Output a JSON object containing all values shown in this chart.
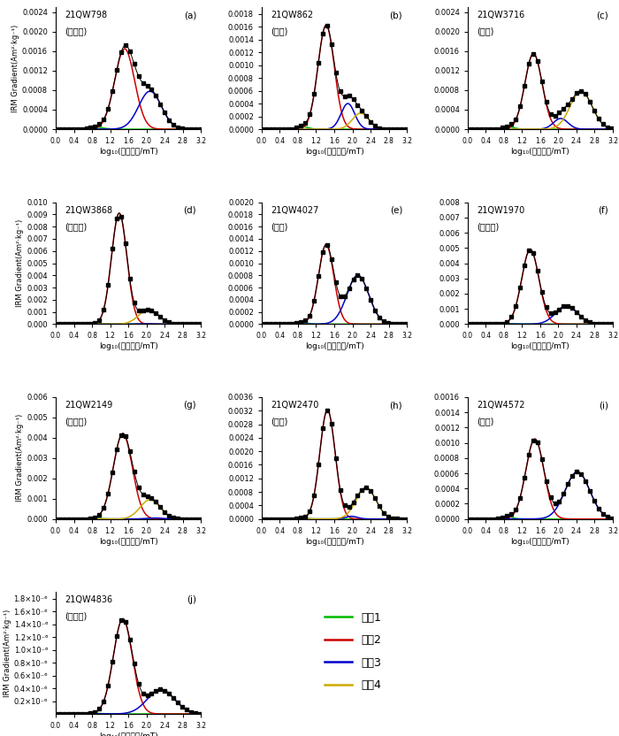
{
  "panels": [
    {
      "id": "a",
      "sample": "21QW798",
      "type": "古土壤",
      "ylim": [
        0,
        0.0025
      ],
      "yticks": [
        0.0,
        0.0004,
        0.0008,
        0.0012,
        0.0016,
        0.002,
        0.0024
      ],
      "comp2": {
        "mu": 1.52,
        "sigma": 0.22,
        "amp": 0.00165
      },
      "comp3": {
        "mu": 2.08,
        "sigma": 0.25,
        "amp": 0.00078
      },
      "comp1": {
        "mu": 0.9,
        "sigma": 0.15,
        "amp": 4e-05
      },
      "comp4": null
    },
    {
      "id": "b",
      "sample": "21QW862",
      "type": "黄土",
      "ylim": [
        0,
        0.0019
      ],
      "yticks": [
        0.0,
        0.0002,
        0.0004,
        0.0006,
        0.0008,
        0.001,
        0.0012,
        0.0014,
        0.0016,
        0.0018
      ],
      "comp2": {
        "mu": 1.42,
        "sigma": 0.18,
        "amp": 0.00162
      },
      "comp3": {
        "mu": 1.9,
        "sigma": 0.15,
        "amp": 0.0004
      },
      "comp1": {
        "mu": 0.9,
        "sigma": 0.12,
        "amp": 4e-05
      },
      "comp4": {
        "mu": 2.18,
        "sigma": 0.18,
        "amp": 0.00025
      }
    },
    {
      "id": "c",
      "sample": "21QW3716",
      "type": "黄土",
      "ylim": [
        0,
        0.0025
      ],
      "yticks": [
        0.0,
        0.0004,
        0.0008,
        0.0012,
        0.0016,
        0.002,
        0.0024
      ],
      "comp2": {
        "mu": 1.45,
        "sigma": 0.19,
        "amp": 0.00155
      },
      "comp3": {
        "mu": 2.05,
        "sigma": 0.16,
        "amp": 0.00022
      },
      "comp1": {
        "mu": 0.9,
        "sigma": 0.12,
        "amp": 5e-05
      },
      "comp4": {
        "mu": 2.5,
        "sigma": 0.24,
        "amp": 0.00078
      }
    },
    {
      "id": "d",
      "sample": "21QW3868",
      "type": "古土壤",
      "ylim": [
        0,
        0.01
      ],
      "yticks": [
        0.0,
        0.001,
        0.002,
        0.003,
        0.004,
        0.005,
        0.006,
        0.007,
        0.008,
        0.009,
        0.01
      ],
      "comp2": {
        "mu": 1.4,
        "sigma": 0.17,
        "amp": 0.0091
      },
      "comp3": {
        "mu": 1.9,
        "sigma": 0.12,
        "amp": 3e-05
      },
      "comp1": {
        "mu": 0.9,
        "sigma": 0.1,
        "amp": 3e-05
      },
      "comp4": {
        "mu": 2.05,
        "sigma": 0.22,
        "amp": 0.00118
      }
    },
    {
      "id": "e",
      "sample": "21QW4027",
      "type": "黄土",
      "ylim": [
        0,
        0.002
      ],
      "yticks": [
        0.0,
        0.0002,
        0.0004,
        0.0006,
        0.0008,
        0.001,
        0.0012,
        0.0014,
        0.0016,
        0.0018,
        0.002
      ],
      "comp2": {
        "mu": 1.42,
        "sigma": 0.17,
        "amp": 0.0013
      },
      "comp3": {
        "mu": 2.12,
        "sigma": 0.24,
        "amp": 0.0008
      },
      "comp1": {
        "mu": 0.9,
        "sigma": 0.1,
        "amp": 3e-05
      },
      "comp4": null
    },
    {
      "id": "f",
      "sample": "21QW1970",
      "type": "古土壤",
      "ylim": [
        0,
        0.008
      ],
      "yticks": [
        0.0,
        0.001,
        0.002,
        0.003,
        0.004,
        0.005,
        0.006,
        0.007,
        0.008
      ],
      "comp2": {
        "mu": 1.38,
        "sigma": 0.19,
        "amp": 0.0049
      },
      "comp3": {
        "mu": 2.18,
        "sigma": 0.24,
        "amp": 0.0012
      },
      "comp1": {
        "mu": 0.9,
        "sigma": 0.1,
        "amp": 3e-05
      },
      "comp4": null
    },
    {
      "id": "g",
      "sample": "21QW2149",
      "type": "古土壤",
      "ylim": [
        0,
        0.006
      ],
      "yticks": [
        0.0,
        0.001,
        0.002,
        0.003,
        0.004,
        0.005,
        0.006
      ],
      "comp2": {
        "mu": 1.48,
        "sigma": 0.21,
        "amp": 0.0042
      },
      "comp3": {
        "mu": 2.18,
        "sigma": 0.18,
        "amp": 5e-05
      },
      "comp1": {
        "mu": 0.9,
        "sigma": 0.1,
        "amp": 3e-05
      },
      "comp4": {
        "mu": 2.08,
        "sigma": 0.22,
        "amp": 0.00095
      }
    },
    {
      "id": "h",
      "sample": "21QW2470",
      "type": "黄土",
      "ylim": [
        0,
        0.0036
      ],
      "yticks": [
        0.0,
        0.0004,
        0.0008,
        0.0012,
        0.0016,
        0.002,
        0.0024,
        0.0028,
        0.0032,
        0.0036
      ],
      "comp2": {
        "mu": 1.45,
        "sigma": 0.17,
        "amp": 0.00322
      },
      "comp3": {
        "mu": 1.98,
        "sigma": 0.13,
        "amp": 8e-05
      },
      "comp1": {
        "mu": 0.9,
        "sigma": 0.1,
        "amp": 3e-05
      },
      "comp4": {
        "mu": 2.3,
        "sigma": 0.22,
        "amp": 0.00092
      }
    },
    {
      "id": "i",
      "sample": "21QW4572",
      "type": "黄土",
      "ylim": [
        0,
        0.0016
      ],
      "yticks": [
        0.0,
        0.0002,
        0.0004,
        0.0006,
        0.0008,
        0.001,
        0.0012,
        0.0014,
        0.0016
      ],
      "comp2": {
        "mu": 1.48,
        "sigma": 0.2,
        "amp": 0.00105
      },
      "comp3": {
        "mu": 2.42,
        "sigma": 0.27,
        "amp": 0.00062
      },
      "comp1": {
        "mu": 0.9,
        "sigma": 0.1,
        "amp": 3e-05
      },
      "comp4": null
    },
    {
      "id": "j",
      "sample": "21QW4836",
      "type": "古土壤",
      "ylim": [
        0,
        1.9e-06
      ],
      "yticks_sci": true,
      "ytick_vals": [
        2e-07,
        4e-07,
        6e-07,
        8e-07,
        1e-06,
        1.2e-06,
        1.4e-06,
        1.6e-06,
        1.8e-06
      ],
      "ytick_labels": [
        "0.2×10⁻⁶",
        "0.4×10⁻⁶",
        "0.6×10⁻⁶",
        "0.8×10⁻⁶",
        "1.0×10⁻⁶",
        "1.2×10⁻⁶",
        "1.4×10⁻⁶",
        "1.6×10⁻⁶",
        "1.8×10⁻⁶"
      ],
      "comp2": {
        "mu": 1.48,
        "sigma": 0.21,
        "amp": 1.48e-06
      },
      "comp3": {
        "mu": 2.32,
        "sigma": 0.3,
        "amp": 3.8e-07
      },
      "comp1": {
        "mu": 0.9,
        "sigma": 0.1,
        "amp": 1e-08
      },
      "comp4": null
    }
  ],
  "colors": {
    "comp1": "#00bb00",
    "comp2": "#cc0000",
    "comp3": "#0000cc",
    "comp4": "#ccaa00",
    "black_line": "#000000"
  },
  "xlim": [
    0.0,
    3.2
  ],
  "xticks": [
    0.0,
    0.4,
    0.8,
    1.2,
    1.6,
    2.0,
    2.4,
    2.8,
    3.2
  ],
  "xlabel": "log₁₀(磁场强度/mT)",
  "ylabel": "IRM Gradient(Am²·kg⁻¹)",
  "legend_labels": [
    "组分1",
    "组分2",
    "组分3",
    "组分4"
  ],
  "legend_colors": [
    "#00bb00",
    "#cc0000",
    "#0000cc",
    "#ccaa00"
  ]
}
